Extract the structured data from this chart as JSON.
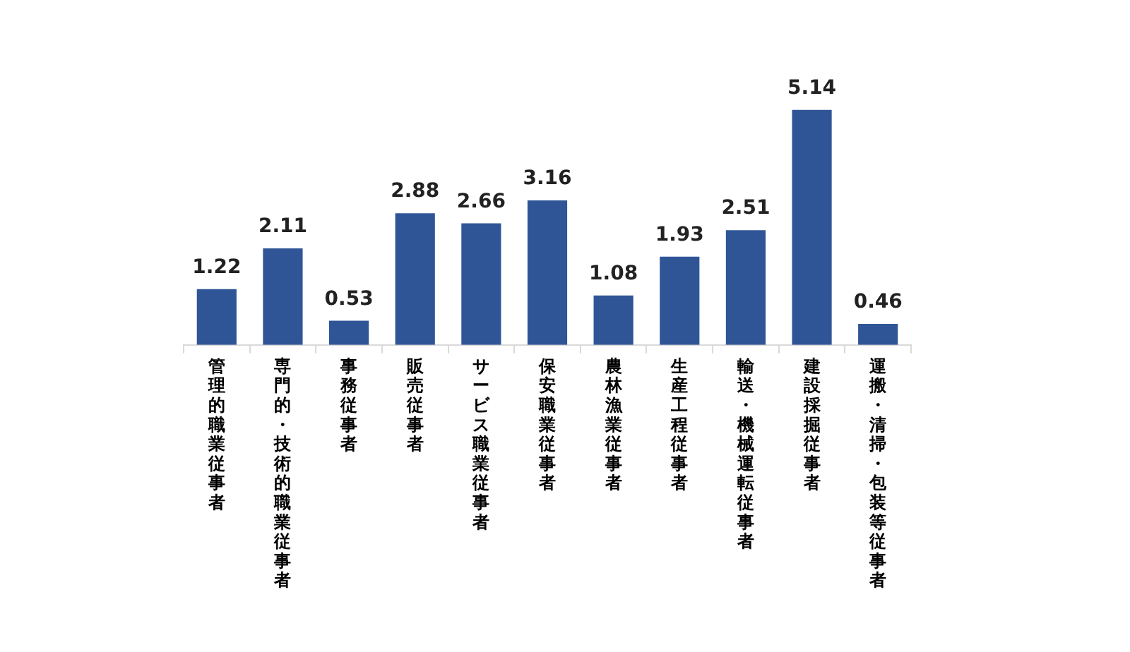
{
  "chart_data": {
    "type": "bar",
    "categories": [
      "管理的職業従事者",
      "専門的・技術的職業従事者",
      "事務従事者",
      "販売従事者",
      "サービス職業従事者",
      "保安職業従事者",
      "農林漁業従事者",
      "生産工程従事者",
      "輸送・機械運転従事者",
      "建設採掘従事者",
      "運搬・清掃・包装等従事者"
    ],
    "values": [
      1.22,
      2.11,
      0.53,
      2.88,
      2.66,
      3.16,
      1.08,
      1.93,
      2.51,
      5.14,
      0.46
    ],
    "color": "#2f5597",
    "data_labels": true,
    "grid": false,
    "legend": false
  }
}
